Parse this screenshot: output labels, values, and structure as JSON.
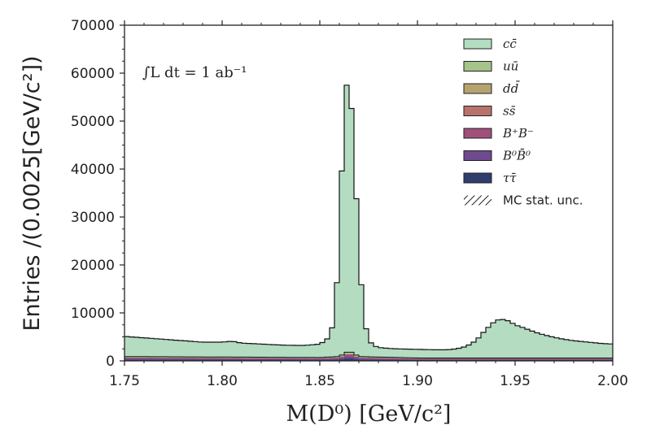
{
  "chart_data": {
    "type": "histogram-stacked",
    "xlabel": "M(D⁰) [GeV/c²]",
    "ylabel": "Entries /(0.0025[GeV/c²])",
    "annotation": "∫L dt = 1 ab⁻¹",
    "xlim": [
      1.75,
      2.0
    ],
    "ylim": [
      0,
      70000
    ],
    "bin_width": 0.0025,
    "x_ticks": [
      "1.75",
      "1.80",
      "1.85",
      "1.90",
      "1.95",
      "2.00"
    ],
    "y_ticks": [
      "0",
      "10000",
      "20000",
      "30000",
      "40000",
      "50000",
      "60000",
      "70000"
    ],
    "legend_position": "top-right",
    "legend": [
      {
        "label": "cc̄",
        "color": "#b3dcc1"
      },
      {
        "label": "uū",
        "color": "#a5c48a"
      },
      {
        "label": "dd̄",
        "color": "#b5a26f"
      },
      {
        "label": "ss̄",
        "color": "#b7736b"
      },
      {
        "label": "B⁺B⁻",
        "color": "#a0507a"
      },
      {
        "label": "B⁰B̄⁰",
        "color": "#6e4a8e"
      },
      {
        "label": "ττ̄",
        "color": "#2f3e6c"
      },
      {
        "label": "MC stat. unc.",
        "color": "#222222",
        "hatched": true
      }
    ],
    "total_points": [
      [
        1.75,
        5100
      ],
      [
        1.76,
        4800
      ],
      [
        1.77,
        4500
      ],
      [
        1.78,
        4200
      ],
      [
        1.79,
        3900
      ],
      [
        1.8,
        3900
      ],
      [
        1.805,
        4100
      ],
      [
        1.81,
        3700
      ],
      [
        1.82,
        3500
      ],
      [
        1.83,
        3300
      ],
      [
        1.84,
        3200
      ],
      [
        1.845,
        3300
      ],
      [
        1.85,
        3500
      ],
      [
        1.852,
        4000
      ],
      [
        1.855,
        5000
      ],
      [
        1.857,
        8000
      ],
      [
        1.859,
        17500
      ],
      [
        1.861,
        37000
      ],
      [
        1.863,
        57800
      ],
      [
        1.865,
        57000
      ],
      [
        1.867,
        50000
      ],
      [
        1.869,
        31500
      ],
      [
        1.871,
        17000
      ],
      [
        1.873,
        8000
      ],
      [
        1.875,
        4500
      ],
      [
        1.877,
        3300
      ],
      [
        1.88,
        2800
      ],
      [
        1.885,
        2600
      ],
      [
        1.89,
        2500
      ],
      [
        1.9,
        2400
      ],
      [
        1.91,
        2300
      ],
      [
        1.915,
        2300
      ],
      [
        1.92,
        2500
      ],
      [
        1.925,
        3000
      ],
      [
        1.93,
        4200
      ],
      [
        1.935,
        6500
      ],
      [
        1.94,
        8400
      ],
      [
        1.943,
        8700
      ],
      [
        1.947,
        8300
      ],
      [
        1.95,
        7500
      ],
      [
        1.955,
        6800
      ],
      [
        1.96,
        6000
      ],
      [
        1.965,
        5400
      ],
      [
        1.97,
        4900
      ],
      [
        1.975,
        4500
      ],
      [
        1.98,
        4200
      ],
      [
        1.985,
        4000
      ],
      [
        1.99,
        3800
      ],
      [
        1.995,
        3600
      ],
      [
        2.0,
        3500
      ]
    ],
    "background_points": [
      [
        1.75,
        900
      ],
      [
        1.8,
        800
      ],
      [
        1.85,
        700
      ],
      [
        1.86,
        900
      ],
      [
        1.865,
        2100
      ],
      [
        1.87,
        900
      ],
      [
        1.9,
        600
      ],
      [
        1.95,
        600
      ],
      [
        2.0,
        600
      ]
    ]
  }
}
